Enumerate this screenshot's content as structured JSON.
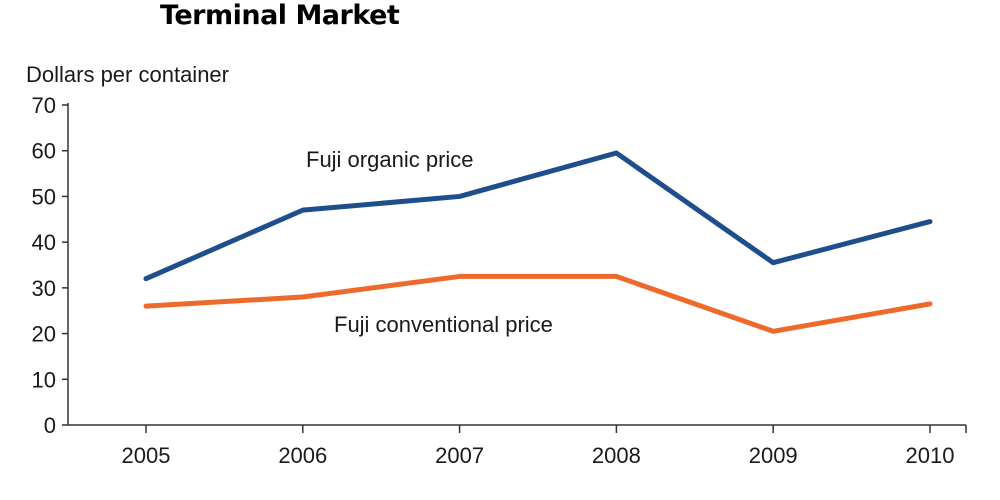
{
  "chart_data": {
    "type": "line",
    "title": "Terminal Market",
    "xlabel": "",
    "ylabel": "Dollars per container",
    "x": [
      2005,
      2006,
      2007,
      2008,
      2009,
      2010
    ],
    "ylim": [
      0,
      70
    ],
    "yticks": [
      0,
      10,
      20,
      30,
      40,
      50,
      60,
      70
    ],
    "grid": false,
    "series": [
      {
        "name": "Fuji organic price",
        "color": "#1f4e8c",
        "values": [
          32,
          47,
          50,
          59.5,
          35.5,
          44.5
        ]
      },
      {
        "name": "Fuji conventional price",
        "color": "#ee6a2a",
        "values": [
          26,
          28,
          32.5,
          32.5,
          20.5,
          26.5
        ]
      }
    ]
  }
}
